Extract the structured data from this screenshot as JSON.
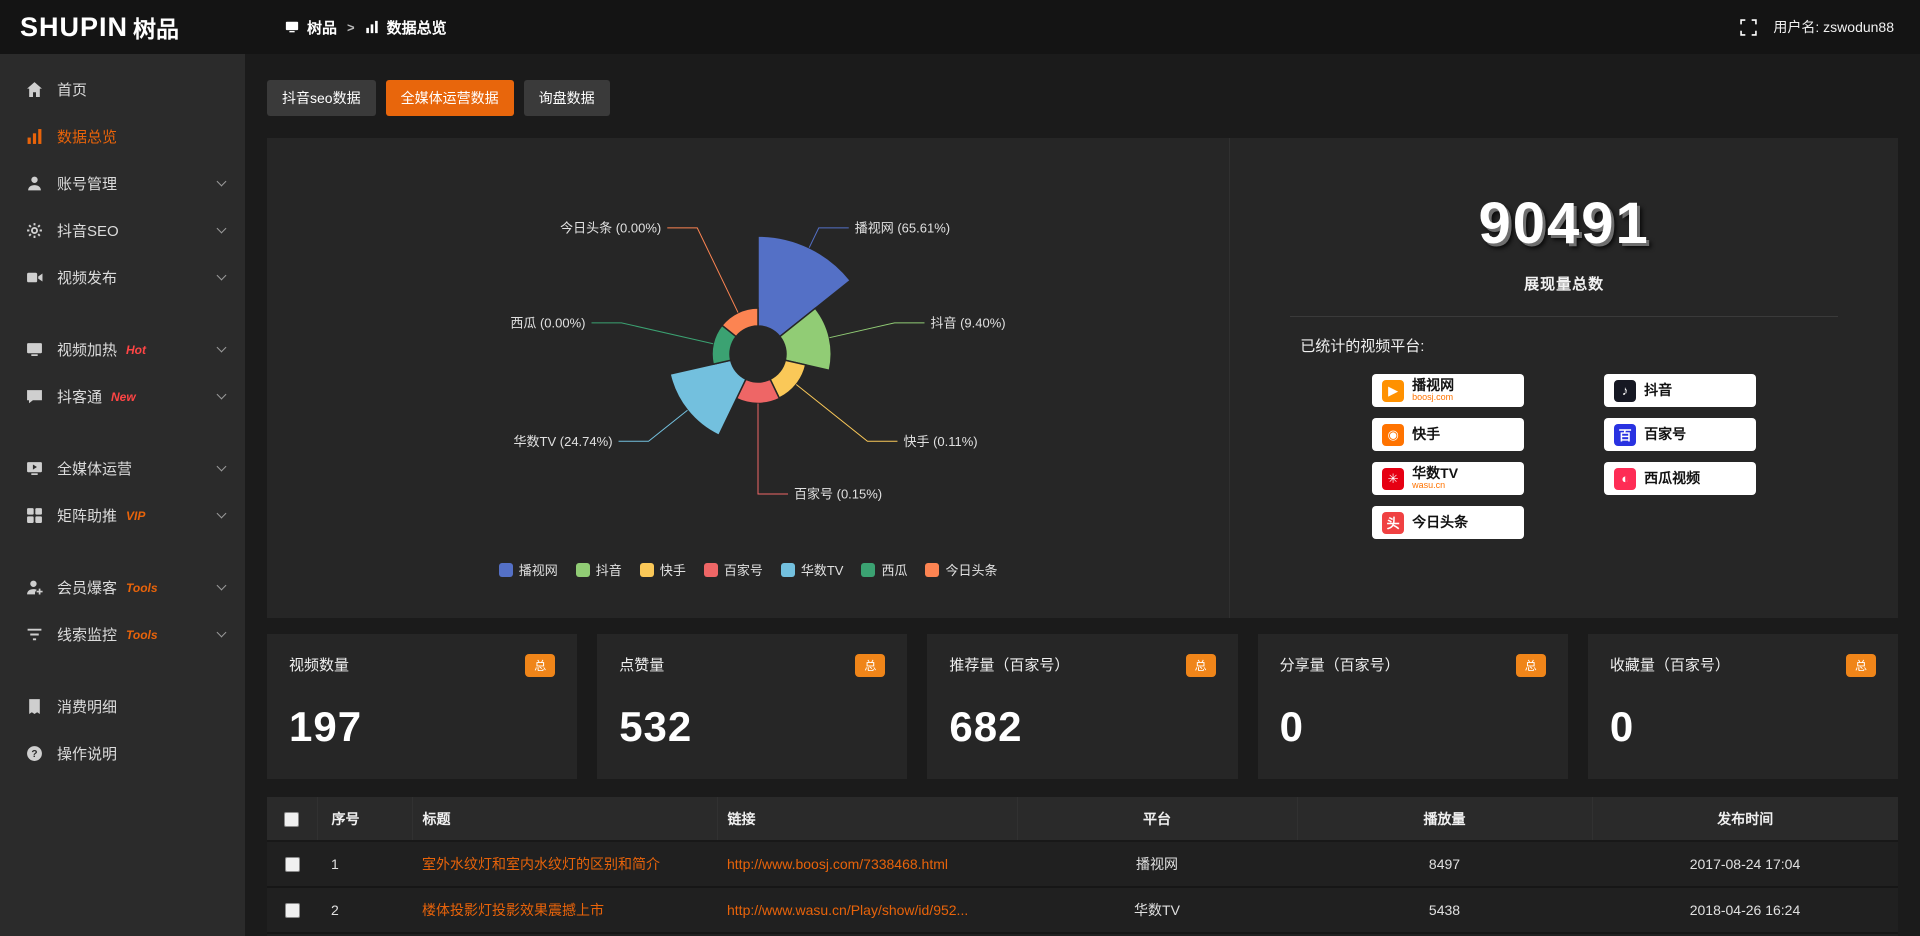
{
  "header": {
    "logo_main": "SHUPIN",
    "logo_sub": "树品",
    "breadcrumb_root": "树品",
    "breadcrumb_sep": ">",
    "breadcrumb_current": "数据总览",
    "username": "用户名: zswodun88"
  },
  "sidebar": {
    "items": [
      {
        "id": "home",
        "label": "首页",
        "icon": "home-icon"
      },
      {
        "id": "data-overview",
        "label": "数据总览",
        "icon": "chart-icon",
        "active": true
      },
      {
        "id": "account-manage",
        "label": "账号管理",
        "icon": "user-icon",
        "chevron": true
      },
      {
        "id": "douyin-seo",
        "label": "抖音SEO",
        "icon": "gear-icon",
        "chevron": true
      },
      {
        "id": "video-publish",
        "label": "视频发布",
        "icon": "video-icon",
        "chevron": true,
        "gap_after": true
      },
      {
        "id": "video-heat",
        "label": "视频加热",
        "icon": "monitor-icon",
        "tag": "Hot",
        "tag_color": "#ff4545",
        "chevron": true
      },
      {
        "id": "douketong",
        "label": "抖客通",
        "icon": "chat-icon",
        "tag": "New",
        "tag_color": "#ff4545",
        "chevron": true,
        "gap_after": true
      },
      {
        "id": "media-operation",
        "label": "全媒体运营",
        "icon": "screen-icon",
        "chevron": true
      },
      {
        "id": "matrix-boost",
        "label": "矩阵助推",
        "icon": "grid-icon",
        "tag": "VIP",
        "tag_color": "#e8630a",
        "chevron": true,
        "gap_after": true
      },
      {
        "id": "member-burst",
        "label": "会员爆客",
        "icon": "member-icon",
        "tag": "Tools",
        "tag_color": "#e8630a",
        "chevron": true
      },
      {
        "id": "clue-monitor",
        "label": "线索监控",
        "icon": "filter-icon",
        "tag": "Tools",
        "tag_color": "#e8630a",
        "chevron": true,
        "gap_after": true
      },
      {
        "id": "consume-detail",
        "label": "消费明细",
        "icon": "bill-icon"
      },
      {
        "id": "operation-guide",
        "label": "操作说明",
        "icon": "help-icon"
      }
    ]
  },
  "tabs": [
    {
      "id": "douyin-seo-data",
      "label": "抖音seo数据"
    },
    {
      "id": "media-operation-data",
      "label": "全媒体运营数据",
      "active": true
    },
    {
      "id": "inquiry-data",
      "label": "询盘数据"
    }
  ],
  "chart_data": {
    "type": "pie",
    "variant": "rose",
    "legend_position": "bottom",
    "unit": "%",
    "series": [
      {
        "name": "播视网",
        "value": 65.61,
        "label": "播视网 (65.61%)",
        "color": "#5470c6"
      },
      {
        "name": "抖音",
        "value": 9.4,
        "label": "抖音 (9.40%)",
        "color": "#91cc75"
      },
      {
        "name": "快手",
        "value": 0.11,
        "label": "快手 (0.11%)",
        "color": "#fac858"
      },
      {
        "name": "百家号",
        "value": 0.15,
        "label": "百家号 (0.15%)",
        "color": "#ee6666"
      },
      {
        "name": "华数TV",
        "value": 24.74,
        "label": "华数TV (24.74%)",
        "color": "#73c0de"
      },
      {
        "name": "西瓜",
        "value": 0.0,
        "label": "西瓜 (0.00%)",
        "color": "#3ba272"
      },
      {
        "name": "今日头条",
        "value": 0.0,
        "label": "今日头条 (0.00%)",
        "color": "#fc8452"
      }
    ]
  },
  "summary": {
    "total_value": "90491",
    "total_label": "展现量总数",
    "platforms_title": "已统计的视频平台:",
    "platform_columns": [
      [
        {
          "name": "播视网",
          "sub": "boosj.com",
          "icon_color": "#ff9100",
          "glyph": "▶"
        },
        {
          "name": "快手",
          "icon_color": "#ff7300",
          "glyph": "◉"
        },
        {
          "name": "华数TV",
          "sub": "wasu.cn",
          "icon_color": "#e60012",
          "glyph": "✳"
        },
        {
          "name": "今日头条",
          "icon_color": "#f04142",
          "glyph": "头"
        }
      ],
      [
        {
          "name": "抖音",
          "icon_color": "#161823",
          "glyph": "♪"
        },
        {
          "name": "百家号",
          "icon_color": "#2932e1",
          "glyph": "百"
        },
        {
          "name": "西瓜视频",
          "icon_color": "#fe2c55",
          "glyph": "◐"
        }
      ]
    ]
  },
  "stat_cards": [
    {
      "title": "视频数量",
      "badge": "总",
      "value": "197"
    },
    {
      "title": "点赞量",
      "badge": "总",
      "value": "532"
    },
    {
      "title": "推荐量（百家号）",
      "badge": "总",
      "value": "682"
    },
    {
      "title": "分享量（百家号）",
      "badge": "总",
      "value": "0"
    },
    {
      "title": "收藏量（百家号）",
      "badge": "总",
      "value": "0"
    }
  ],
  "table": {
    "columns": [
      "",
      "序号",
      "标题",
      "链接",
      "平台",
      "播放量",
      "发布时间"
    ],
    "rows": [
      {
        "index": "1",
        "title": "室外水纹灯和室内水纹灯的区别和简介",
        "link": "http://www.boosj.com/7338468.html",
        "platform": "播视网",
        "plays": "8497",
        "time": "2017-08-24 17:04"
      },
      {
        "index": "2",
        "title": "楼体投影灯投影效果震撼上市",
        "link": "http://www.wasu.cn/Play/show/id/952...",
        "platform": "华数TV",
        "plays": "5438",
        "time": "2018-04-26 16:24"
      }
    ]
  }
}
